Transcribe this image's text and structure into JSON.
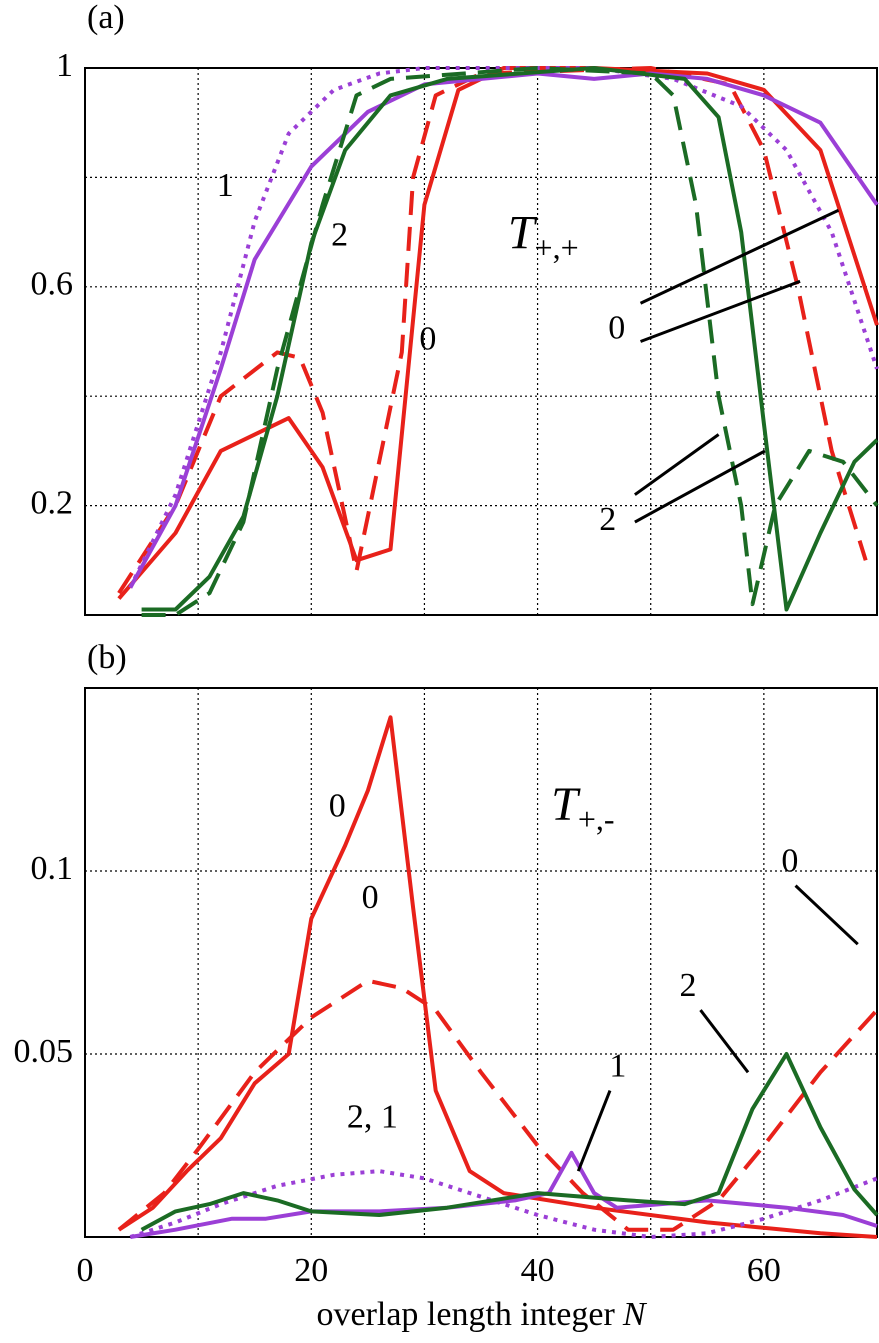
{
  "chart_data": [
    {
      "type": "line",
      "title": "(a)",
      "xlim": [
        0,
        70
      ],
      "ylim": [
        0,
        1
      ],
      "xticks": [
        {
          "value": 10,
          "label": null
        },
        {
          "value": 20,
          "label": null
        },
        {
          "value": 30,
          "label": null
        },
        {
          "value": 40,
          "label": null
        },
        {
          "value": 50,
          "label": null
        },
        {
          "value": 60,
          "label": null
        }
      ],
      "yticks": [
        0.2,
        {
          "value": 0.4,
          "label": null
        },
        0.6,
        {
          "value": 0.8,
          "label": null
        },
        1
      ],
      "grid": true,
      "series": [
        {
          "color": "#e8211a",
          "dash": "solid",
          "x": [
            3,
            8,
            12,
            18,
            21,
            24,
            27,
            30,
            33,
            37,
            45,
            55,
            60,
            65,
            70
          ],
          "values": [
            0.03,
            0.15,
            0.3,
            0.36,
            0.27,
            0.1,
            0.12,
            0.75,
            0.96,
            1.0,
            1.0,
            0.99,
            0.96,
            0.85,
            0.53
          ]
        },
        {
          "color": "#e8211a",
          "dash": "dashed",
          "x": [
            3,
            8,
            12,
            17,
            19,
            21,
            24,
            28,
            29,
            31,
            35,
            50,
            57,
            60,
            63,
            66,
            69
          ],
          "values": [
            0.04,
            0.2,
            0.4,
            0.48,
            0.47,
            0.37,
            0.08,
            0.48,
            0.8,
            0.95,
            0.99,
            1.0,
            0.97,
            0.85,
            0.6,
            0.3,
            0.1
          ]
        },
        {
          "color": "#9b3fd6",
          "dash": "solid",
          "x": [
            4,
            8,
            12,
            15,
            20,
            25,
            30,
            40,
            45,
            50,
            55,
            60,
            65,
            70
          ],
          "values": [
            0.05,
            0.2,
            0.45,
            0.65,
            0.82,
            0.92,
            0.97,
            0.99,
            0.98,
            0.99,
            0.98,
            0.95,
            0.9,
            0.75
          ]
        },
        {
          "color": "#9b3fd6",
          "dash": "dotted",
          "x": [
            4,
            8,
            12,
            15,
            18,
            22,
            26,
            30,
            45,
            52,
            58,
            62,
            66,
            70
          ],
          "values": [
            0.05,
            0.22,
            0.48,
            0.72,
            0.88,
            0.96,
            0.99,
            1.0,
            1.0,
            0.98,
            0.93,
            0.85,
            0.7,
            0.45
          ]
        },
        {
          "color": "#1b6b24",
          "dash": "solid",
          "x": [
            5,
            8,
            11,
            14,
            17,
            20,
            23,
            27,
            32,
            45,
            53,
            56,
            58,
            60,
            62,
            65,
            68,
            70
          ],
          "values": [
            0.01,
            0.01,
            0.07,
            0.18,
            0.4,
            0.68,
            0.85,
            0.95,
            0.98,
            1.0,
            0.98,
            0.91,
            0.7,
            0.35,
            0.01,
            0.15,
            0.28,
            0.32
          ]
        },
        {
          "color": "#1b6b24",
          "dash": "dashed",
          "x": [
            5,
            8,
            11,
            14,
            17,
            21,
            24,
            27,
            40,
            50,
            52,
            54,
            56,
            58,
            59,
            61,
            64,
            67,
            70
          ],
          "values": [
            0.0,
            0.0,
            0.04,
            0.17,
            0.45,
            0.75,
            0.95,
            0.98,
            1.0,
            0.99,
            0.95,
            0.75,
            0.4,
            0.2,
            0.02,
            0.2,
            0.3,
            0.28,
            0.2
          ]
        }
      ],
      "annotations": [
        {
          "text": "1",
          "x": 12.4,
          "y": 0.78
        },
        {
          "text": "2",
          "x": 22.5,
          "y": 0.69
        },
        {
          "text": "0",
          "x": 30.3,
          "y": 0.5
        },
        {
          "text": "0",
          "x": 47,
          "y": 0.52,
          "lines": [
            [
              49.1,
              0.57,
              66.6,
              0.74
            ],
            [
              49.1,
              0.5,
              63.2,
              0.61
            ]
          ]
        },
        {
          "text": "2",
          "x": 46.2,
          "y": 0.17,
          "lines": [
            [
              48.6,
              0.22,
              56,
              0.33
            ],
            [
              48.6,
              0.17,
              60.1,
              0.3
            ]
          ]
        }
      ],
      "symbol": {
        "text": "T",
        "sub": "+,+",
        "x": 40.5,
        "y": 0.69
      }
    },
    {
      "type": "line",
      "title": "(b)",
      "xlim": [
        0,
        70
      ],
      "ylim": [
        0,
        0.15
      ],
      "xticks": [
        0,
        {
          "value": 10,
          "label": null
        },
        20,
        {
          "value": 30,
          "label": null
        },
        40,
        {
          "value": 50,
          "label": null
        },
        60
      ],
      "yticks": [
        0.05,
        0.1
      ],
      "grid": true,
      "xlabel": "overlap length integer",
      "xlabel_var": "N",
      "series": [
        {
          "color": "#e8211a",
          "dash": "solid",
          "x": [
            3,
            6,
            9,
            12,
            15,
            18,
            20,
            23,
            25,
            27,
            29,
            31,
            34,
            37,
            45,
            55,
            65,
            70
          ],
          "values": [
            0.002,
            0.008,
            0.018,
            0.027,
            0.042,
            0.05,
            0.087,
            0.107,
            0.122,
            0.142,
            0.09,
            0.04,
            0.018,
            0.012,
            0.008,
            0.004,
            0.001,
            0.0
          ]
        },
        {
          "color": "#e8211a",
          "dash": "dashed",
          "x": [
            3,
            7,
            10,
            15,
            20,
            25,
            28,
            31,
            35,
            40,
            44,
            48,
            52,
            56,
            60,
            65,
            70
          ],
          "values": [
            0.002,
            0.012,
            0.024,
            0.045,
            0.06,
            0.07,
            0.068,
            0.062,
            0.045,
            0.025,
            0.012,
            0.002,
            0.002,
            0.01,
            0.025,
            0.045,
            0.062
          ]
        },
        {
          "color": "#9b3fd6",
          "dash": "solid",
          "x": [
            4,
            8,
            13,
            16,
            20,
            26,
            32,
            38,
            41,
            43,
            45,
            47,
            55,
            62,
            67,
            70
          ],
          "values": [
            0.0,
            0.002,
            0.005,
            0.005,
            0.007,
            0.007,
            0.008,
            0.01,
            0.012,
            0.023,
            0.012,
            0.008,
            0.01,
            0.008,
            0.006,
            0.003
          ]
        },
        {
          "color": "#9b3fd6",
          "dash": "dotted",
          "x": [
            4,
            8,
            12,
            17,
            22,
            26,
            30,
            35,
            40,
            45,
            50,
            55,
            60,
            65,
            70
          ],
          "values": [
            0.0,
            0.004,
            0.009,
            0.014,
            0.017,
            0.018,
            0.016,
            0.011,
            0.006,
            0.002,
            0.0,
            0.001,
            0.005,
            0.01,
            0.016
          ]
        },
        {
          "color": "#1b6b24",
          "dash": "solid",
          "x": [
            5,
            8,
            11,
            14,
            17,
            20,
            26,
            32,
            40,
            48,
            53,
            56,
            59,
            62,
            65,
            68,
            70
          ],
          "values": [
            0.002,
            0.007,
            0.009,
            0.012,
            0.01,
            0.007,
            0.006,
            0.008,
            0.012,
            0.01,
            0.009,
            0.012,
            0.035,
            0.05,
            0.03,
            0.013,
            0.006
          ]
        }
      ],
      "annotations": [
        {
          "text": "0",
          "x": 22.3,
          "y": 0.117
        },
        {
          "text": "0",
          "x": 25.2,
          "y": 0.092
        },
        {
          "text": "2, 1",
          "x": 25.4,
          "y": 0.032
        },
        {
          "text": "1",
          "x": 47.1,
          "y": 0.046,
          "lines": [
            [
              46.4,
              0.04,
              43.6,
              0.018
            ]
          ]
        },
        {
          "text": "2",
          "x": 53.3,
          "y": 0.068,
          "lines": [
            [
              54.4,
              0.062,
              58.6,
              0.045
            ]
          ]
        },
        {
          "text": "0",
          "x": 62.3,
          "y": 0.102,
          "lines": [
            [
              62.8,
              0.096,
              68.3,
              0.08
            ]
          ]
        }
      ],
      "symbol": {
        "text": "T",
        "sub": "+,-",
        "x": 44,
        "y": 0.117
      }
    }
  ]
}
